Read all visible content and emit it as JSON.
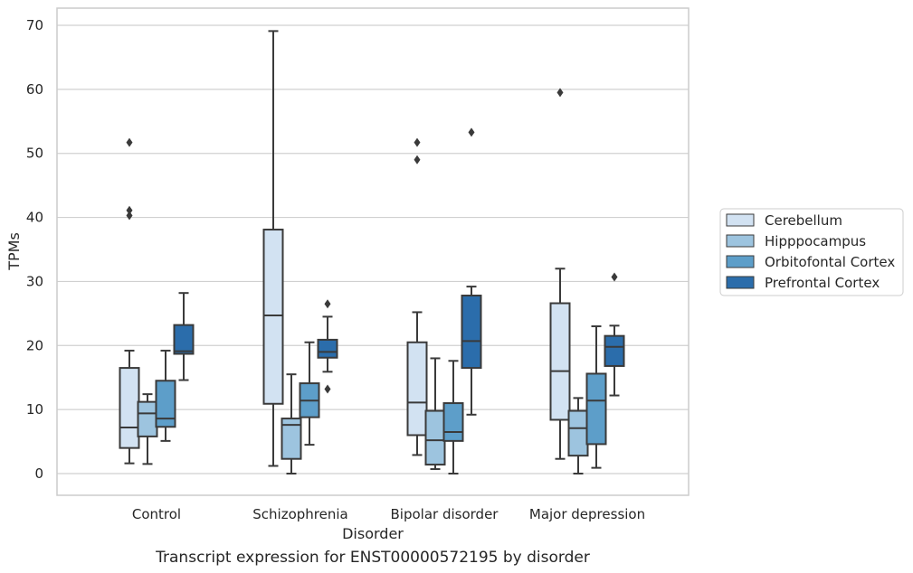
{
  "chart_data": {
    "type": "box",
    "title": "",
    "caption": "Transcript expression for ENST00000572195 by disorder",
    "xlabel": "Disorder",
    "ylabel": "TPMs",
    "ylim": [
      -3.3,
      72.5
    ],
    "yticks": [
      0,
      10,
      20,
      30,
      40,
      50,
      60,
      70
    ],
    "grid": true,
    "legend_position": "center-right",
    "categories": [
      "Control",
      "Schizophrenia",
      "Bipolar disorder",
      "Major depression"
    ],
    "series": [
      {
        "name": "Cerebellum",
        "color": "#d2e2f2",
        "boxes": [
          {
            "whisker_low": 1.6,
            "q1": 4.0,
            "median": 7.2,
            "q3": 16.5,
            "whisker_high": 19.2,
            "outliers": [
              40.3,
              41.1,
              51.7
            ]
          },
          {
            "whisker_low": 1.2,
            "q1": 10.9,
            "median": 24.7,
            "q3": 38.1,
            "whisker_high": 69.1,
            "outliers": []
          },
          {
            "whisker_low": 2.9,
            "q1": 6.0,
            "median": 11.1,
            "q3": 20.5,
            "whisker_high": 25.2,
            "outliers": [
              49.0,
              51.7
            ]
          },
          {
            "whisker_low": 2.3,
            "q1": 8.4,
            "median": 16.0,
            "q3": 26.6,
            "whisker_high": 32.0,
            "outliers": [
              59.5
            ]
          }
        ]
      },
      {
        "name": "Hipppocampus",
        "color": "#9dc4df",
        "boxes": [
          {
            "whisker_low": 1.5,
            "q1": 5.8,
            "median": 9.4,
            "q3": 11.2,
            "whisker_high": 12.4,
            "outliers": []
          },
          {
            "whisker_low": 0.0,
            "q1": 2.3,
            "median": 7.6,
            "q3": 8.6,
            "whisker_high": 15.5,
            "outliers": []
          },
          {
            "whisker_low": 0.7,
            "q1": 1.4,
            "median": 5.2,
            "q3": 9.8,
            "whisker_high": 18.0,
            "outliers": []
          },
          {
            "whisker_low": 0.0,
            "q1": 2.8,
            "median": 7.1,
            "q3": 9.8,
            "whisker_high": 11.8,
            "outliers": []
          }
        ]
      },
      {
        "name": "Orbitofontal Cortex",
        "color": "#5d9ec9",
        "boxes": [
          {
            "whisker_low": 5.1,
            "q1": 7.3,
            "median": 8.6,
            "q3": 14.5,
            "whisker_high": 19.2,
            "outliers": []
          },
          {
            "whisker_low": 4.5,
            "q1": 8.8,
            "median": 11.4,
            "q3": 14.1,
            "whisker_high": 20.5,
            "outliers": []
          },
          {
            "whisker_low": 0.0,
            "q1": 5.1,
            "median": 6.5,
            "q3": 11.0,
            "whisker_high": 17.6,
            "outliers": []
          },
          {
            "whisker_low": 0.9,
            "q1": 4.6,
            "median": 11.4,
            "q3": 15.6,
            "whisker_high": 23.0,
            "outliers": []
          }
        ]
      },
      {
        "name": "Prefrontal Cortex",
        "color": "#2b6dab",
        "boxes": [
          {
            "whisker_low": 14.6,
            "q1": 18.7,
            "median": 19.1,
            "q3": 23.2,
            "whisker_high": 28.2,
            "outliers": []
          },
          {
            "whisker_low": 15.9,
            "q1": 18.1,
            "median": 19.0,
            "q3": 20.9,
            "whisker_high": 24.5,
            "outliers": [
              13.2,
              26.5
            ]
          },
          {
            "whisker_low": 9.2,
            "q1": 16.5,
            "median": 20.7,
            "q3": 27.8,
            "whisker_high": 29.2,
            "outliers": [
              53.3
            ]
          },
          {
            "whisker_low": 12.2,
            "q1": 16.8,
            "median": 19.8,
            "q3": 21.5,
            "whisker_high": 23.1,
            "outliers": [
              30.7
            ]
          }
        ]
      }
    ]
  }
}
